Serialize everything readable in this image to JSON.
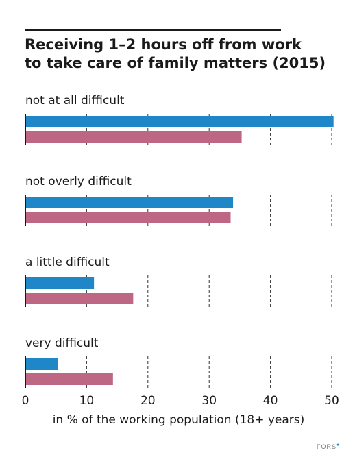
{
  "title_line1": "Receiving 1–2 hours off from work",
  "title_line2": "to take care of family matters (2015)",
  "logo": "FORS",
  "colors": {
    "series_a": "#1f86c8",
    "series_b": "#bd6784",
    "axis": "#1a1a1a",
    "grid": "#333333"
  },
  "chart_data": {
    "type": "bar",
    "orientation": "horizontal",
    "title": "Receiving 1–2 hours off from work to take care of family matters (2015)",
    "categories": [
      "not at all difficult",
      "not overly difficult",
      "a little difficult",
      "very difficult"
    ],
    "series": [
      {
        "values": [
          50.3,
          33.9,
          11.2,
          5.3
        ]
      },
      {
        "values": [
          35.3,
          33.5,
          17.6,
          14.3
        ]
      }
    ],
    "xlabel": "in % of the working population (18+ years)",
    "xlim": [
      0,
      50
    ],
    "xticks": [
      0,
      10,
      20,
      30,
      40,
      50
    ],
    "grid": "dashed vertical lines at 10-unit intervals",
    "legend": "none"
  }
}
